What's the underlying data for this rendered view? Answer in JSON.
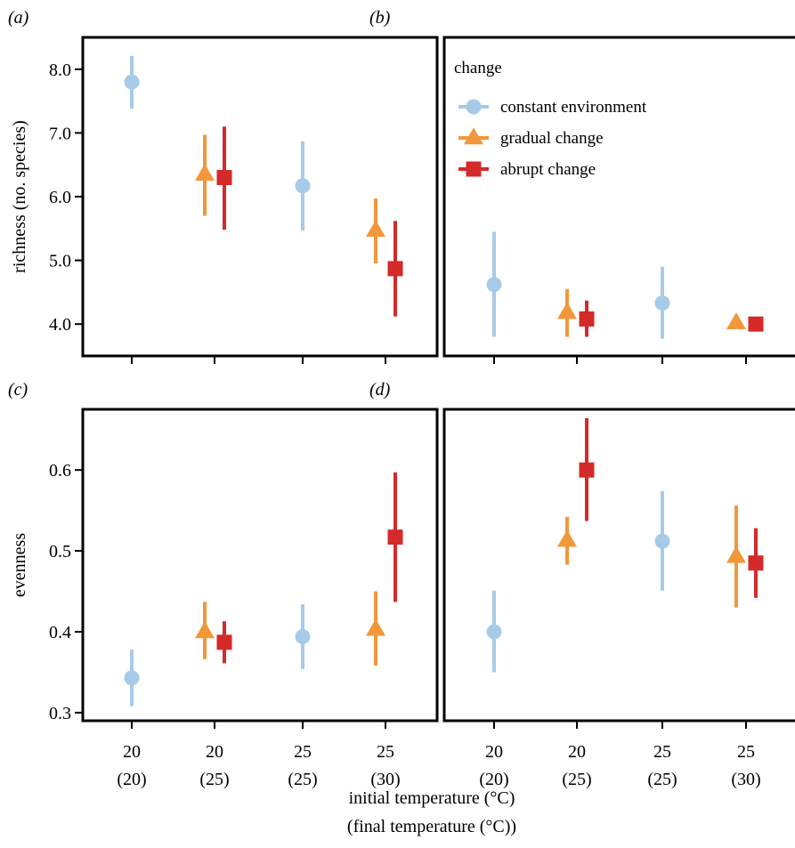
{
  "chart_data": {
    "type": "scatter",
    "layout": "2x2 panels, shared x axis per column, shared y axis per row, error bars on every point",
    "x_axis": {
      "title_line1": "initial temperature (°C)",
      "title_line2": "(final temperature (°C))",
      "categories": [
        {
          "top": "20",
          "bottom": "(20)"
        },
        {
          "top": "20",
          "bottom": "(25)"
        },
        {
          "top": "25",
          "bottom": "(25)"
        },
        {
          "top": "25",
          "bottom": "(30)"
        }
      ]
    },
    "legend": {
      "title": "change",
      "placement": "top-left of panel (b)",
      "entries": [
        {
          "name": "constant environment",
          "color": "#a6cbe8",
          "marker": "circle"
        },
        {
          "name": "gradual change",
          "color": "#f2973a",
          "marker": "triangle"
        },
        {
          "name": "abrupt change",
          "color": "#d42a2a",
          "marker": "square"
        }
      ]
    },
    "rows": [
      {
        "ylabel": "richness (no. species)",
        "ylim": [
          3.5,
          8.5
        ],
        "yticks": [
          4.0,
          5.0,
          6.0,
          7.0,
          8.0
        ],
        "ytick_labels": [
          "4.0",
          "5.0",
          "6.0",
          "7.0",
          "8.0"
        ]
      },
      {
        "ylabel": "evenness",
        "ylim": [
          0.29,
          0.675
        ],
        "yticks": [
          0.3,
          0.4,
          0.5,
          0.6
        ],
        "ytick_labels": [
          "0.3",
          "0.4",
          "0.5",
          "0.6"
        ]
      }
    ],
    "panels": [
      {
        "label": "(a)",
        "row": 0,
        "col": 0,
        "points": [
          {
            "series": "constant environment",
            "x": 0,
            "y": 7.8,
            "low": 7.38,
            "high": 8.21
          },
          {
            "series": "gradual change",
            "x": 1,
            "y": 6.35,
            "low": 5.7,
            "high": 6.97
          },
          {
            "series": "abrupt change",
            "x": 1,
            "y": 6.3,
            "low": 5.48,
            "high": 7.1
          },
          {
            "series": "constant environment",
            "x": 2,
            "y": 6.17,
            "low": 5.47,
            "high": 6.87
          },
          {
            "series": "gradual change",
            "x": 3,
            "y": 5.47,
            "low": 4.95,
            "high": 5.97
          },
          {
            "series": "abrupt change",
            "x": 3,
            "y": 4.87,
            "low": 4.12,
            "high": 5.62
          }
        ]
      },
      {
        "label": "(b)",
        "row": 0,
        "col": 1,
        "points": [
          {
            "series": "constant environment",
            "x": 0,
            "y": 4.62,
            "low": 3.8,
            "high": 5.45
          },
          {
            "series": "gradual change",
            "x": 1,
            "y": 4.18,
            "low": 3.8,
            "high": 4.55
          },
          {
            "series": "abrupt change",
            "x": 1,
            "y": 4.08,
            "low": 3.8,
            "high": 4.37
          },
          {
            "series": "constant environment",
            "x": 2,
            "y": 4.33,
            "low": 3.77,
            "high": 4.9
          },
          {
            "series": "gradual change",
            "x": 3,
            "y": 4.02,
            "low": 4.02,
            "high": 4.02
          },
          {
            "series": "abrupt change",
            "x": 3,
            "y": 4.0,
            "low": 4.0,
            "high": 4.0
          }
        ]
      },
      {
        "label": "(c)",
        "row": 1,
        "col": 0,
        "points": [
          {
            "series": "constant environment",
            "x": 0,
            "y": 0.343,
            "low": 0.308,
            "high": 0.378
          },
          {
            "series": "gradual change",
            "x": 1,
            "y": 0.4,
            "low": 0.366,
            "high": 0.437
          },
          {
            "series": "abrupt change",
            "x": 1,
            "y": 0.387,
            "low": 0.361,
            "high": 0.413
          },
          {
            "series": "constant environment",
            "x": 2,
            "y": 0.394,
            "low": 0.354,
            "high": 0.434
          },
          {
            "series": "gradual change",
            "x": 3,
            "y": 0.403,
            "low": 0.358,
            "high": 0.45
          },
          {
            "series": "abrupt change",
            "x": 3,
            "y": 0.517,
            "low": 0.437,
            "high": 0.597
          }
        ]
      },
      {
        "label": "(d)",
        "row": 1,
        "col": 1,
        "points": [
          {
            "series": "constant environment",
            "x": 0,
            "y": 0.4,
            "low": 0.35,
            "high": 0.451
          },
          {
            "series": "gradual change",
            "x": 1,
            "y": 0.513,
            "low": 0.483,
            "high": 0.542
          },
          {
            "series": "abrupt change",
            "x": 1,
            "y": 0.6,
            "low": 0.537,
            "high": 0.664
          },
          {
            "series": "constant environment",
            "x": 2,
            "y": 0.512,
            "low": 0.451,
            "high": 0.574
          },
          {
            "series": "gradual change",
            "x": 3,
            "y": 0.493,
            "low": 0.43,
            "high": 0.556
          },
          {
            "series": "abrupt change",
            "x": 3,
            "y": 0.485,
            "low": 0.442,
            "high": 0.528
          }
        ]
      }
    ]
  }
}
